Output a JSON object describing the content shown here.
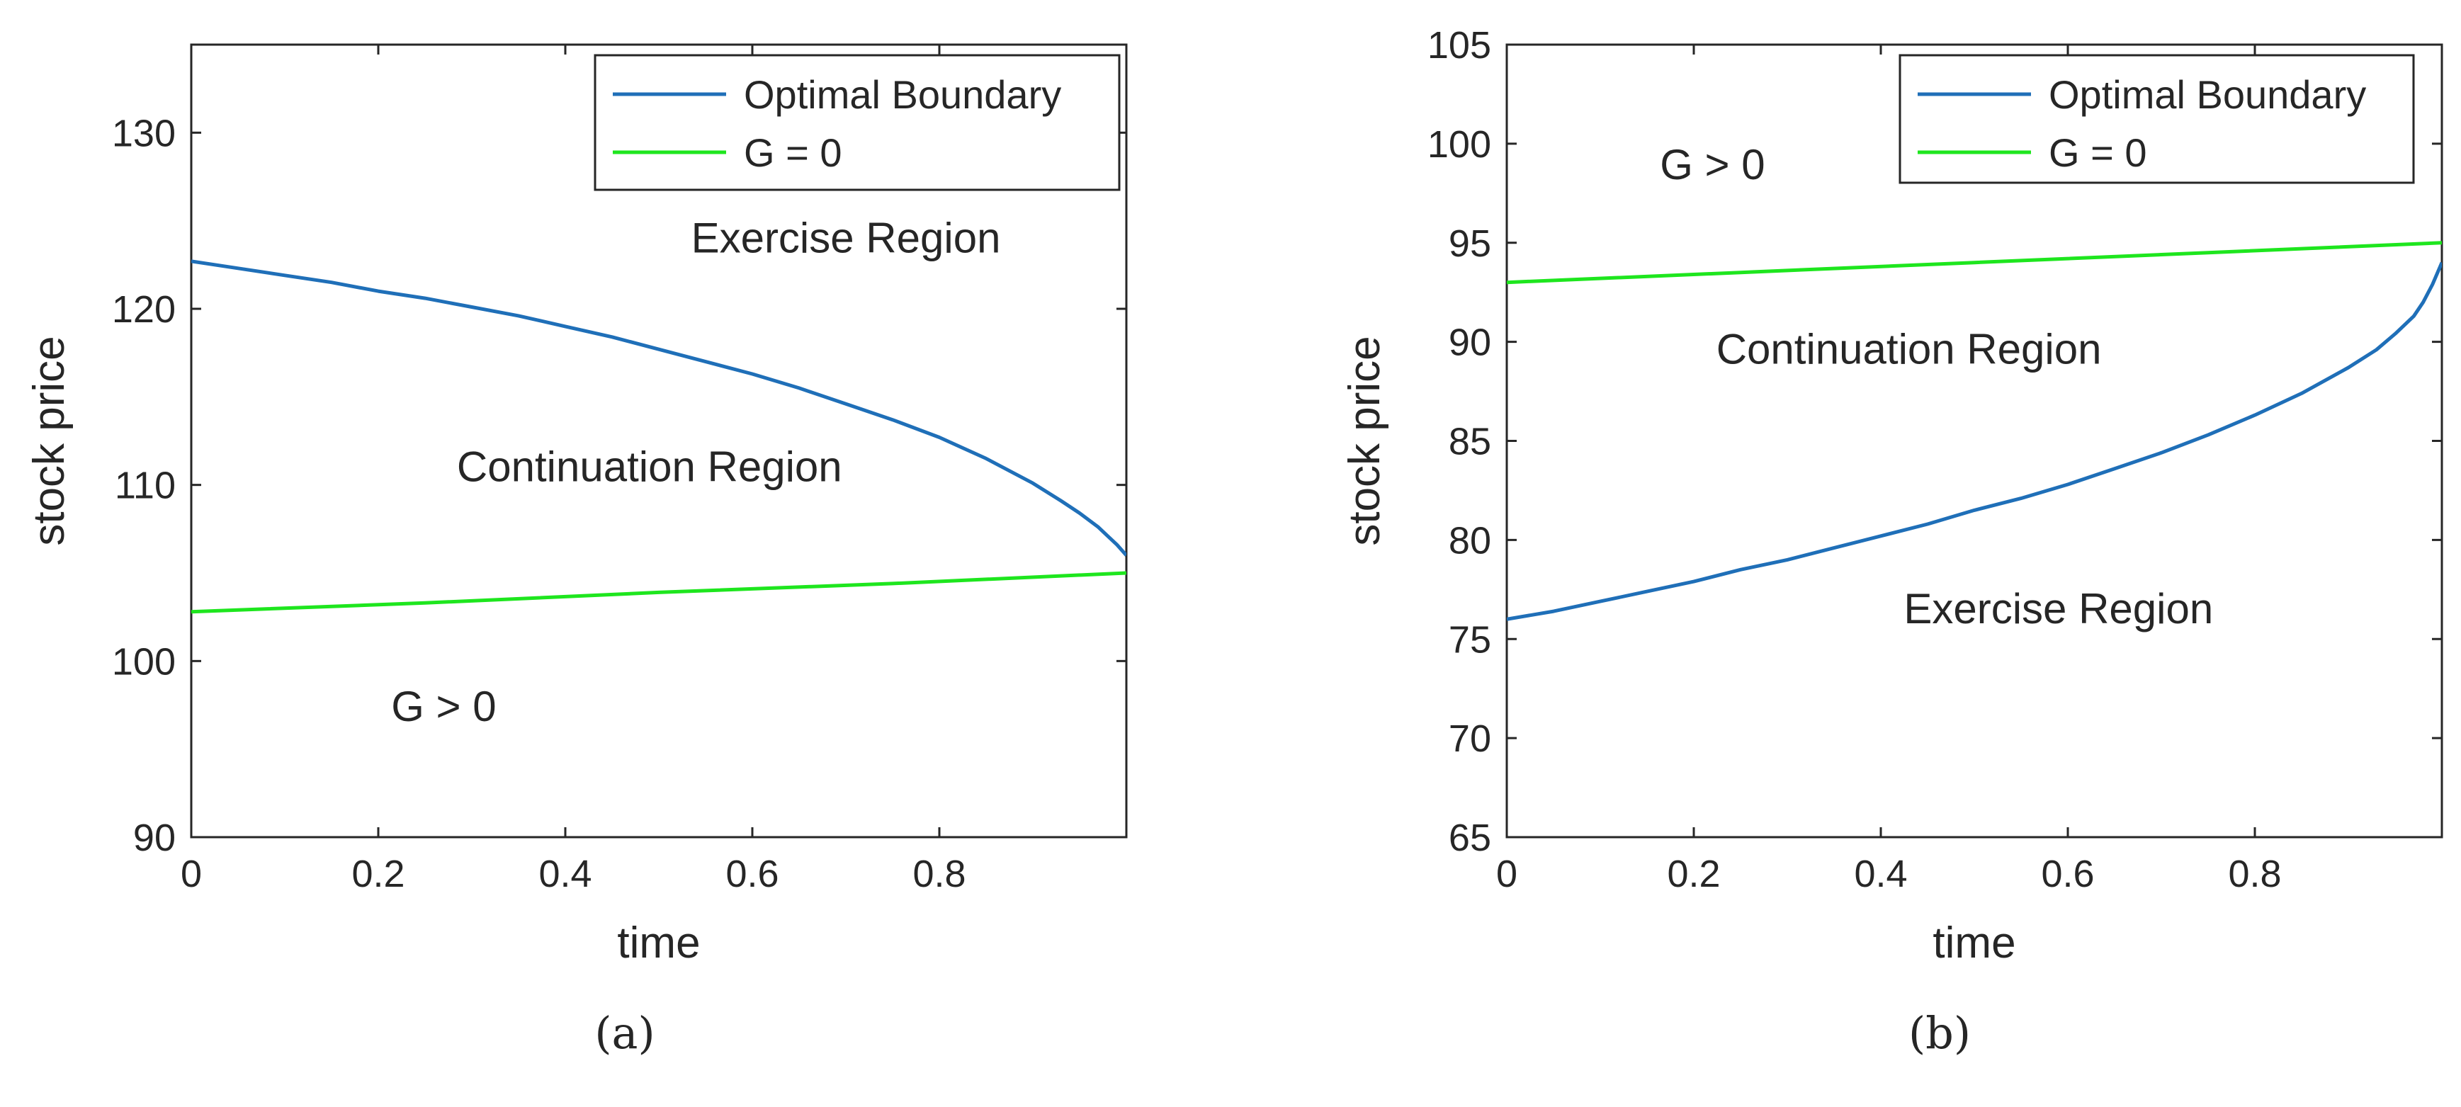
{
  "colors": {
    "boundary": "#1f6fb8",
    "g_zero": "#1ee61e",
    "axis": "#262626"
  },
  "chart_data": [
    {
      "type": "line",
      "panel_label": "(a)",
      "panel_letter": "a",
      "xlabel": "time",
      "ylabel": "stock price",
      "xlim": [
        0,
        1
      ],
      "ylim": [
        90,
        135
      ],
      "xticks": [
        0,
        0.2,
        0.4,
        0.6,
        0.8
      ],
      "xtick_labels": [
        "0",
        "0.2",
        "0.4",
        "0.6",
        "0.8"
      ],
      "yticks": [
        90,
        100,
        110,
        120,
        130
      ],
      "ytick_labels": [
        "90",
        "100",
        "110",
        "120",
        "130"
      ],
      "legend_position": "top-right",
      "series": [
        {
          "name": "Optimal Boundary",
          "color": "#1f6fb8",
          "x": [
            0,
            0.05,
            0.1,
            0.15,
            0.2,
            0.25,
            0.3,
            0.35,
            0.4,
            0.45,
            0.5,
            0.55,
            0.6,
            0.65,
            0.7,
            0.75,
            0.8,
            0.85,
            0.9,
            0.93,
            0.95,
            0.97,
            0.98,
            0.99,
            1.0
          ],
          "y": [
            122.7,
            122.3,
            121.9,
            121.5,
            121.0,
            120.6,
            120.1,
            119.6,
            119.0,
            118.4,
            117.7,
            117.0,
            116.3,
            115.5,
            114.6,
            113.7,
            112.7,
            111.5,
            110.1,
            109.1,
            108.4,
            107.6,
            107.1,
            106.6,
            106.0
          ]
        },
        {
          "name": "G = 0",
          "color": "#1ee61e",
          "x": [
            0,
            0.25,
            0.5,
            0.75,
            1.0
          ],
          "y": [
            102.8,
            103.3,
            103.9,
            104.4,
            105.0
          ]
        }
      ],
      "annotations": [
        {
          "text": "Exercise Region",
          "x": 0.7,
          "y": 123.2
        },
        {
          "text": "Continuation Region",
          "x": 0.49,
          "y": 110.2
        },
        {
          "text": "G > 0",
          "x": 0.27,
          "y": 96.6
        }
      ]
    },
    {
      "type": "line",
      "panel_label": "(b)",
      "panel_letter": "b",
      "xlabel": "time",
      "ylabel": "stock price",
      "xlim": [
        0,
        1
      ],
      "ylim": [
        65,
        105
      ],
      "xticks": [
        0,
        0.2,
        0.4,
        0.6,
        0.8
      ],
      "xtick_labels": [
        "0",
        "0.2",
        "0.4",
        "0.6",
        "0.8"
      ],
      "yticks": [
        65,
        70,
        75,
        80,
        85,
        90,
        95,
        100,
        105
      ],
      "ytick_labels": [
        "65",
        "70",
        "75",
        "80",
        "85",
        "90",
        "95",
        "100",
        "105"
      ],
      "legend_position": "top-right",
      "series": [
        {
          "name": "Optimal Boundary",
          "color": "#1f6fb8",
          "x": [
            0,
            0.05,
            0.1,
            0.15,
            0.2,
            0.25,
            0.3,
            0.35,
            0.4,
            0.45,
            0.5,
            0.55,
            0.6,
            0.65,
            0.7,
            0.75,
            0.8,
            0.85,
            0.9,
            0.93,
            0.95,
            0.97,
            0.98,
            0.99,
            1.0
          ],
          "y": [
            76.0,
            76.4,
            76.9,
            77.4,
            77.9,
            78.5,
            79.0,
            79.6,
            80.2,
            80.8,
            81.5,
            82.1,
            82.8,
            83.6,
            84.4,
            85.3,
            86.3,
            87.4,
            88.7,
            89.6,
            90.4,
            91.3,
            92.0,
            92.9,
            94.0
          ]
        },
        {
          "name": "G = 0",
          "color": "#1ee61e",
          "x": [
            0,
            0.25,
            0.5,
            0.75,
            1.0
          ],
          "y": [
            93.0,
            93.5,
            94.0,
            94.5,
            95.0
          ]
        }
      ],
      "annotations": [
        {
          "text": "G > 0",
          "x": 0.22,
          "y": 98.2
        },
        {
          "text": "Continuation Region",
          "x": 0.43,
          "y": 88.9
        },
        {
          "text": "Exercise Region",
          "x": 0.59,
          "y": 75.8
        }
      ]
    }
  ]
}
